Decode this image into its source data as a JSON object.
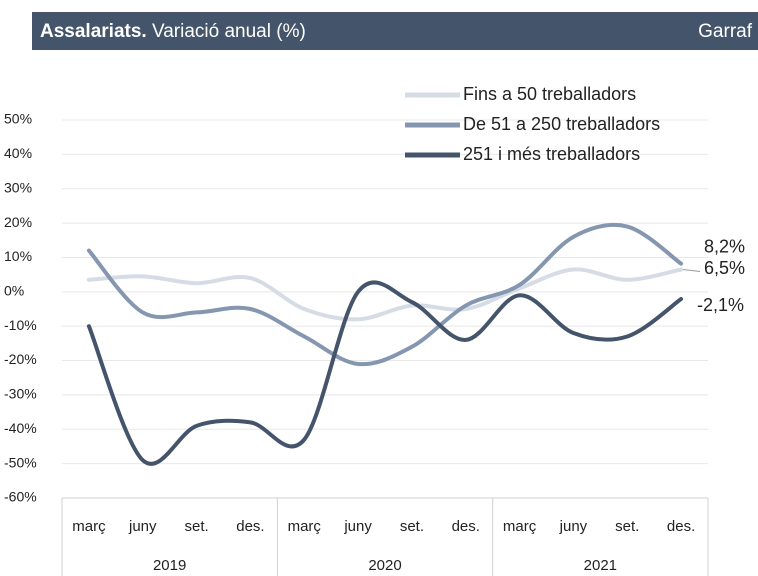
{
  "chart_data": {
    "type": "line",
    "title": "Assalariats.",
    "subtitle": "Variació anual (%)",
    "region": "Garraf",
    "categories": [
      "març",
      "juny",
      "set.",
      "des.",
      "març",
      "juny",
      "set.",
      "des.",
      "març",
      "juny",
      "set.",
      "des."
    ],
    "groups": [
      "2019",
      "2020",
      "2021"
    ],
    "series": [
      {
        "name": "Fins a 50 treballadors",
        "color": "#d6dce5",
        "values": [
          3.5,
          4.5,
          2.5,
          4,
          -5,
          -8,
          -4,
          -5,
          1,
          6.5,
          3.5,
          6.5
        ],
        "value_labels": [
          null,
          null,
          null,
          null,
          null,
          null,
          null,
          null,
          null,
          null,
          null,
          "6,5%"
        ]
      },
      {
        "name": "De 51 a 250 treballadors",
        "color": "#8496b0",
        "values": [
          12,
          -6,
          -6,
          -5,
          -13,
          -21,
          -16,
          -4,
          2,
          16,
          19,
          8.2
        ],
        "value_labels": [
          null,
          null,
          null,
          null,
          null,
          null,
          null,
          null,
          null,
          null,
          null,
          "8,2%"
        ]
      },
      {
        "name": "251 i més treballadors",
        "color": "#44546a",
        "values": [
          -10,
          -49,
          -39,
          -38,
          -43,
          0,
          -3,
          -14,
          -1,
          -12,
          -13,
          -2.1
        ],
        "value_labels": [
          null,
          null,
          null,
          null,
          null,
          null,
          null,
          null,
          null,
          null,
          null,
          "-2,1%"
        ]
      }
    ],
    "ylim": [
      -60,
      50
    ],
    "yticks": [
      {
        "value": -60,
        "label": "-60%"
      },
      {
        "value": -50,
        "label": "-50%"
      },
      {
        "value": -40,
        "label": "-40%"
      },
      {
        "value": -30,
        "label": "-30%"
      },
      {
        "value": -20,
        "label": "-20%"
      },
      {
        "value": -10,
        "label": "-10%"
      },
      {
        "value": 0,
        "label": "0%"
      },
      {
        "value": 10,
        "label": "10%"
      },
      {
        "value": 20,
        "label": "20%"
      },
      {
        "value": 30,
        "label": "30%"
      },
      {
        "value": 40,
        "label": "40%"
      },
      {
        "value": 50,
        "label": "50%"
      }
    ],
    "grid": true
  }
}
